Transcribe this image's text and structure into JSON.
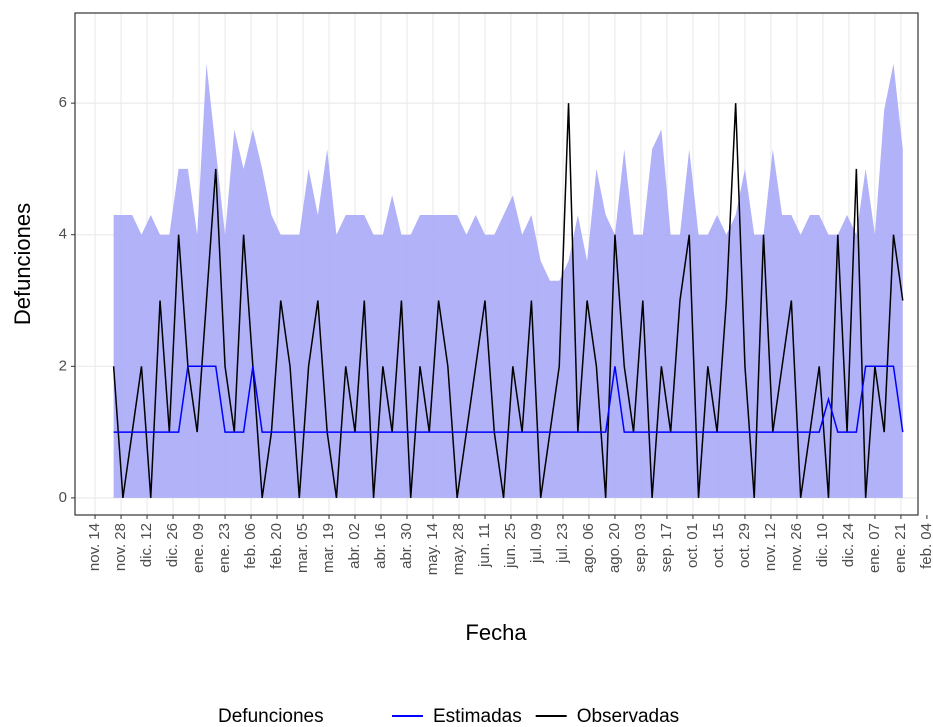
{
  "chart_data": {
    "type": "line",
    "x_label": "Fecha",
    "y_label": "Defunciones",
    "legend_title": "Defunciones",
    "xlim": [
      -10.8,
      443.2
    ],
    "ylim": [
      -0.26,
      7.37
    ],
    "yticks": [
      0,
      2,
      4,
      6
    ],
    "grid": true,
    "legend_position": "bottom",
    "xticks": [
      {
        "value": 0,
        "label": "nov. 14"
      },
      {
        "value": 14,
        "label": "nov. 28"
      },
      {
        "value": 28,
        "label": "dic. 12"
      },
      {
        "value": 42,
        "label": "dic. 26"
      },
      {
        "value": 56,
        "label": "ene. 09"
      },
      {
        "value": 70,
        "label": "ene. 23"
      },
      {
        "value": 84,
        "label": "feb. 06"
      },
      {
        "value": 98,
        "label": "feb. 20"
      },
      {
        "value": 112,
        "label": "mar. 05"
      },
      {
        "value": 126,
        "label": "mar. 19"
      },
      {
        "value": 140,
        "label": "abr. 02"
      },
      {
        "value": 154,
        "label": "abr. 16"
      },
      {
        "value": 168,
        "label": "abr. 30"
      },
      {
        "value": 182,
        "label": "may. 14"
      },
      {
        "value": 196,
        "label": "may. 28"
      },
      {
        "value": 210,
        "label": "jun. 11"
      },
      {
        "value": 224,
        "label": "jun. 25"
      },
      {
        "value": 238,
        "label": "jul. 09"
      },
      {
        "value": 252,
        "label": "jul. 23"
      },
      {
        "value": 266,
        "label": "ago. 06"
      },
      {
        "value": 280,
        "label": "ago. 20"
      },
      {
        "value": 294,
        "label": "sep. 03"
      },
      {
        "value": 308,
        "label": "sep. 17"
      },
      {
        "value": 322,
        "label": "oct. 01"
      },
      {
        "value": 336,
        "label": "oct. 15"
      },
      {
        "value": 350,
        "label": "oct. 29"
      },
      {
        "value": 364,
        "label": "nov. 12"
      },
      {
        "value": 378,
        "label": "nov. 26"
      },
      {
        "value": 392,
        "label": "dic. 10"
      },
      {
        "value": 406,
        "label": "dic. 24"
      },
      {
        "value": 420,
        "label": "ene. 07"
      },
      {
        "value": 434,
        "label": "ene. 21"
      },
      {
        "value": 448,
        "label": "feb. 04"
      }
    ],
    "x": [
      10,
      15,
      20,
      25,
      30,
      35,
      40,
      45,
      50,
      55,
      60,
      65,
      70,
      75,
      80,
      85,
      90,
      95,
      100,
      105,
      110,
      115,
      120,
      125,
      130,
      135,
      140,
      145,
      150,
      155,
      160,
      165,
      170,
      175,
      180,
      185,
      190,
      195,
      200,
      205,
      210,
      215,
      220,
      225,
      230,
      235,
      240,
      245,
      250,
      255,
      260,
      265,
      270,
      275,
      280,
      285,
      290,
      295,
      300,
      305,
      310,
      315,
      320,
      325,
      330,
      335,
      340,
      345,
      350,
      355,
      360,
      365,
      370,
      375,
      380,
      385,
      390,
      395,
      400,
      405,
      410,
      415,
      420,
      425,
      430,
      435
    ],
    "band": {
      "color": "#aaaaf8",
      "lower": [
        0,
        0,
        0,
        0,
        0,
        0,
        0,
        0,
        0,
        0,
        0,
        0,
        0,
        0,
        0,
        0,
        0,
        0,
        0,
        0,
        0,
        0,
        0,
        0,
        0,
        0,
        0,
        0,
        0,
        0,
        0,
        0,
        0,
        0,
        0,
        0,
        0,
        0,
        0,
        0,
        0,
        0,
        0,
        0,
        0,
        0,
        0,
        0,
        0,
        0,
        0,
        0,
        0,
        0,
        0,
        0,
        0,
        0,
        0,
        0,
        0,
        0,
        0,
        0,
        0,
        0,
        0,
        0,
        0,
        0,
        0,
        0,
        0,
        0,
        0,
        0,
        0,
        0,
        0,
        0,
        0,
        0,
        0,
        0,
        0,
        0
      ],
      "upper": [
        4.3,
        4.3,
        4.3,
        4,
        4.3,
        4,
        4,
        5,
        5,
        4,
        6.6,
        5.3,
        4,
        5.6,
        5,
        5.6,
        5,
        4.3,
        4,
        4,
        4,
        5,
        4.3,
        5.3,
        4,
        4.3,
        4.3,
        4.3,
        4,
        4,
        4.6,
        4,
        4,
        4.3,
        4.3,
        4.3,
        4.3,
        4.3,
        4,
        4.3,
        4,
        4,
        4.3,
        4.6,
        4,
        4.3,
        3.6,
        3.3,
        3.3,
        3.6,
        4.3,
        3.6,
        5,
        4.3,
        4,
        5.3,
        4,
        4,
        5.3,
        5.6,
        4,
        4,
        5.3,
        4,
        4,
        4.3,
        4,
        4.3,
        5,
        4,
        4,
        5.3,
        4.3,
        4.3,
        4,
        4.3,
        4.3,
        4,
        4,
        4.3,
        4,
        5,
        4,
        5.9,
        6.6,
        5.3
      ]
    },
    "series": [
      {
        "name": "Estimadas",
        "color": "#0000ff",
        "values": [
          1,
          1,
          1,
          1,
          1,
          1,
          1,
          1,
          2,
          2,
          2,
          2,
          1,
          1,
          1,
          2,
          1,
          1,
          1,
          1,
          1,
          1,
          1,
          1,
          1,
          1,
          1,
          1,
          1,
          1,
          1,
          1,
          1,
          1,
          1,
          1,
          1,
          1,
          1,
          1,
          1,
          1,
          1,
          1,
          1,
          1,
          1,
          1,
          1,
          1,
          1,
          1,
          1,
          1,
          2,
          1,
          1,
          1,
          1,
          1,
          1,
          1,
          1,
          1,
          1,
          1,
          1,
          1,
          1,
          1,
          1,
          1,
          1,
          1,
          1,
          1,
          1,
          1.5,
          1,
          1,
          1,
          2,
          2,
          2,
          2,
          1
        ]
      },
      {
        "name": "Observadas",
        "color": "#000000",
        "values": [
          2,
          0,
          1,
          2,
          0,
          3,
          1,
          4,
          2,
          1,
          3,
          5,
          2,
          1,
          4,
          2,
          0,
          1,
          3,
          2,
          0,
          2,
          3,
          1,
          0,
          2,
          1,
          3,
          0,
          2,
          1,
          3,
          0,
          2,
          1,
          3,
          2,
          0,
          1,
          2,
          3,
          1,
          0,
          2,
          1,
          3,
          0,
          1,
          2,
          6,
          1,
          3,
          2,
          0,
          4,
          2,
          1,
          3,
          0,
          2,
          1,
          3,
          4,
          0,
          2,
          1,
          3,
          6,
          2,
          0,
          4,
          1,
          2,
          3,
          0,
          1,
          2,
          0,
          4,
          1,
          5,
          0,
          2,
          1,
          4,
          3
        ]
      }
    ]
  }
}
